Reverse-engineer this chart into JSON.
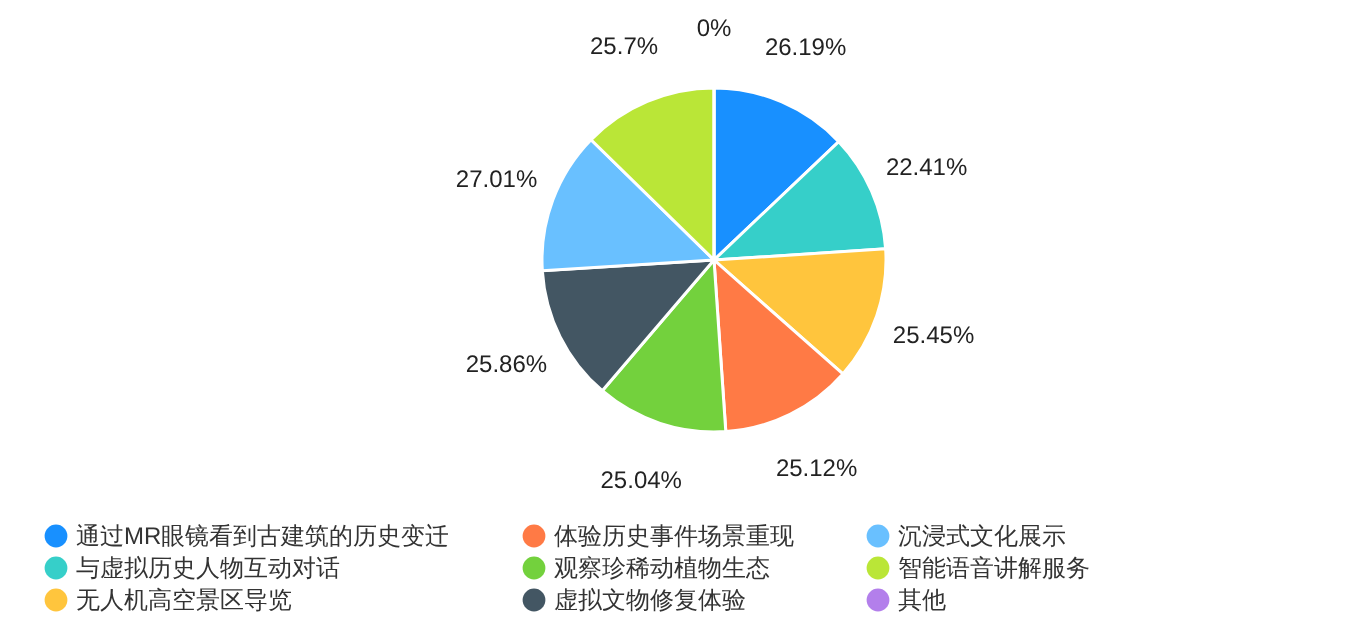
{
  "chart_data": {
    "type": "pie",
    "categories": [
      "通过MR眼镜看到古建筑的历史变迁",
      "与虚拟历史人物互动对话",
      "无人机高空景区导览",
      "体验历史事件场景重现",
      "观察珍稀动植物生态",
      "虚拟文物修复体验",
      "沉浸式文化展示",
      "智能语音讲解服务",
      "其他"
    ],
    "values": [
      26.19,
      22.41,
      25.45,
      25.12,
      25.04,
      25.86,
      27.01,
      25.7,
      0
    ],
    "value_labels": [
      "26.19%",
      "22.41%",
      "25.45%",
      "25.12%",
      "25.04%",
      "25.86%",
      "27.01%",
      "25.7%",
      "0%"
    ],
    "colors": [
      "#1890ff",
      "#36cfc9",
      "#ffc53d",
      "#ff7a45",
      "#73d13d",
      "#435663",
      "#69c0ff",
      "#bae637",
      "#b37feb"
    ],
    "legend": "bottom"
  }
}
